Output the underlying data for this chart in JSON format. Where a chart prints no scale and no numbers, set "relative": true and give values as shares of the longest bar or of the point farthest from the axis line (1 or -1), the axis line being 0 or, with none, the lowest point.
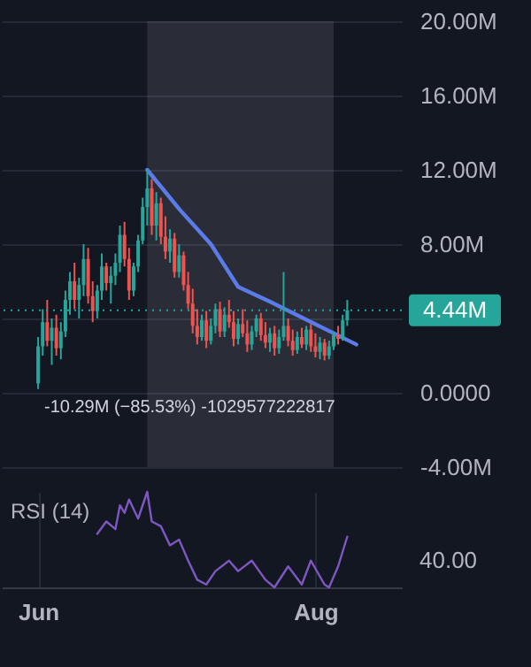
{
  "chart_data": [
    {
      "type": "candlestick",
      "x": [
        "--06-01",
        "--06-02",
        "--06-03",
        "--06-04",
        "--06-05",
        "--06-06",
        "--06-07",
        "--06-08",
        "--06-09",
        "--06-10",
        "--06-11",
        "--06-12",
        "--06-13",
        "--06-14",
        "--06-15",
        "--06-16",
        "--06-17",
        "--06-18",
        "--06-19",
        "--06-20",
        "--06-21",
        "--06-22",
        "--06-23",
        "--06-24",
        "--06-25",
        "--06-26",
        "--06-27",
        "--06-28",
        "--06-29",
        "--06-30",
        "--07-01",
        "--07-02",
        "--07-03",
        "--07-04",
        "--07-05",
        "--07-06",
        "--07-07",
        "--07-08",
        "--07-09",
        "--07-10",
        "--07-11",
        "--07-12",
        "--07-13",
        "--07-14",
        "--07-15",
        "--07-16",
        "--07-17",
        "--07-18",
        "--07-19",
        "--07-20",
        "--07-21",
        "--07-22",
        "--07-23",
        "--07-24",
        "--07-25",
        "--07-26",
        "--07-27",
        "--07-28",
        "--07-29",
        "--07-30",
        "--07-31",
        "--08-01",
        "--08-02",
        "--08-03",
        "--08-04",
        "--08-05",
        "--08-06",
        "--08-07",
        "--08-08"
      ],
      "ohlc": [
        [
          0.5,
          3,
          0.2,
          2.5
        ],
        [
          2.5,
          4.5,
          2,
          3.8
        ],
        [
          3.8,
          5,
          2.5,
          2.8
        ],
        [
          2.8,
          4,
          1.5,
          3.5
        ],
        [
          3.5,
          4.2,
          2,
          2.4
        ],
        [
          2.4,
          3.8,
          1.8,
          3.3
        ],
        [
          3.3,
          5.5,
          3,
          5
        ],
        [
          5,
          6.5,
          4.2,
          6
        ],
        [
          6,
          7,
          4.5,
          5
        ],
        [
          5,
          6.2,
          4,
          5.8
        ],
        [
          5.8,
          8,
          5.2,
          7.2
        ],
        [
          7.2,
          7.8,
          4.8,
          5.2
        ],
        [
          5.2,
          6,
          3.8,
          4.4
        ],
        [
          4.4,
          5.8,
          4,
          5.5
        ],
        [
          5.5,
          7.5,
          5,
          6.8
        ],
        [
          6.8,
          7,
          5.5,
          5.9
        ],
        [
          5.9,
          6.8,
          4.8,
          6.3
        ],
        [
          6.3,
          7.5,
          5.8,
          7
        ],
        [
          7,
          9,
          6.5,
          8.5
        ],
        [
          8.5,
          9.2,
          6.8,
          7.2
        ],
        [
          7.2,
          7.8,
          5,
          5.5
        ],
        [
          5.5,
          7,
          5.2,
          6.8
        ],
        [
          6.8,
          8.5,
          6.5,
          8.2
        ],
        [
          8.2,
          10.5,
          8,
          10
        ],
        [
          10,
          12.03,
          9,
          11
        ],
        [
          11,
          11.5,
          8.5,
          9
        ],
        [
          9,
          10.8,
          8.2,
          10.2
        ],
        [
          10.2,
          10.5,
          8,
          8.4
        ],
        [
          8.4,
          9.5,
          7.2,
          7.6
        ],
        [
          7.6,
          8.8,
          7,
          8.3
        ],
        [
          8.3,
          8.6,
          6.2,
          6.5
        ],
        [
          6.5,
          8,
          6.2,
          7.4
        ],
        [
          7.4,
          7.6,
          5.5,
          5.8
        ],
        [
          5.8,
          6.5,
          4.5,
          4.8
        ],
        [
          4.8,
          5.6,
          3.2,
          3.6
        ],
        [
          3.6,
          4.5,
          2.6,
          3
        ],
        [
          3,
          4.2,
          2.8,
          3.9
        ],
        [
          3.9,
          4.4,
          2.4,
          2.8
        ],
        [
          2.8,
          4,
          2.6,
          3.6
        ],
        [
          3.6,
          4.8,
          3.2,
          4.5
        ],
        [
          4.5,
          4.9,
          3,
          3.3
        ],
        [
          3.3,
          4.6,
          3,
          4.2
        ],
        [
          4.2,
          5,
          3.5,
          3.8
        ],
        [
          3.8,
          4.4,
          2.5,
          2.9
        ],
        [
          2.9,
          4,
          2.6,
          3.7
        ],
        [
          3.7,
          4.5,
          3,
          3.2
        ],
        [
          3.2,
          3.9,
          2.2,
          2.6
        ],
        [
          2.6,
          3.6,
          2.3,
          3.3
        ],
        [
          3.3,
          4.2,
          3,
          4
        ],
        [
          4,
          4.3,
          2.8,
          3.1
        ],
        [
          3.1,
          3.8,
          2.4,
          2.7
        ],
        [
          2.7,
          3.5,
          2.2,
          3.2
        ],
        [
          3.2,
          3.6,
          2,
          2.4
        ],
        [
          2.4,
          3.4,
          2.1,
          3
        ],
        [
          3,
          6.5,
          2.8,
          3.6
        ],
        [
          3.6,
          4,
          2.5,
          2.8
        ],
        [
          2.8,
          3.4,
          2,
          2.3
        ],
        [
          2.3,
          3.3,
          2.1,
          3
        ],
        [
          3,
          3.5,
          2.4,
          2.6
        ],
        [
          2.6,
          3.6,
          2.3,
          3.4
        ],
        [
          3.4,
          3.7,
          2.2,
          2.5
        ],
        [
          2.5,
          3.2,
          1.9,
          2.2
        ],
        [
          2.2,
          3,
          1.8,
          2.7
        ],
        [
          2.7,
          2.9,
          1.74,
          2
        ],
        [
          2,
          2.8,
          1.8,
          2.5
        ],
        [
          2.5,
          3.3,
          2.3,
          3.1
        ],
        [
          3.1,
          3.6,
          2.6,
          2.9
        ],
        [
          2.9,
          4.2,
          2.8,
          3.9
        ],
        [
          3.9,
          5,
          3.6,
          4.44
        ]
      ],
      "colors": [
        "#26a69a",
        "#26a69a",
        "#ef5350",
        "#26a69a",
        "#ef5350",
        "#26a69a",
        "#26a69a",
        "#26a69a",
        "#ef5350",
        "#26a69a",
        "#26a69a",
        "#ef5350",
        "#ef5350",
        "#26a69a",
        "#26a69a",
        "#ef5350",
        "#26a69a",
        "#26a69a",
        "#26a69a",
        "#ef5350",
        "#ef5350",
        "#26a69a",
        "#26a69a",
        "#26a69a",
        "#26a69a",
        "#ef5350",
        "#26a69a",
        "#ef5350",
        "#ef5350",
        "#26a69a",
        "#ef5350",
        "#26a69a",
        "#ef5350",
        "#ef5350",
        "#ef5350",
        "#ef5350",
        "#26a69a",
        "#ef5350",
        "#26a69a",
        "#26a69a",
        "#ef5350",
        "#26a69a",
        "#ef5350",
        "#ef5350",
        "#26a69a",
        "#ef5350",
        "#ef5350",
        "#26a69a",
        "#26a69a",
        "#ef5350",
        "#ef5350",
        "#26a69a",
        "#ef5350",
        "#26a69a",
        "#26a69a",
        "#ef5350",
        "#ef5350",
        "#26a69a",
        "#ef5350",
        "#26a69a",
        "#ef5350",
        "#ef5350",
        "#26a69a",
        "#ef5350",
        "#26a69a",
        "#26a69a",
        "#ef5350",
        "#26a69a",
        "#26a69a"
      ],
      "series": [
        {
          "type": "line",
          "color": "#5b7be8",
          "x": [
            "--06-25",
            "--07-02",
            "--07-09",
            "--07-15",
            "--07-22",
            "--07-27",
            "--08-10"
          ],
          "values": [
            12.0,
            9.9,
            8.0,
            5.7,
            4.9,
            4.3,
            2.6
          ]
        }
      ],
      "xlim": [
        "--05-24",
        "--08-20"
      ],
      "ylim": [
        -4,
        20
      ],
      "yticks": [
        {
          "value": -4,
          "label": "-4.00M"
        },
        {
          "value": 0,
          "label": "0.0000"
        },
        {
          "value": 4,
          "label": null
        },
        {
          "value": 8,
          "label": "8.00M"
        },
        {
          "value": 12,
          "label": "12.00M"
        },
        {
          "value": 16,
          "label": "16.00M"
        },
        {
          "value": 20,
          "label": "20.00M"
        }
      ],
      "tick_labels": "y",
      "grid": "y",
      "ref_lines": [
        {
          "axis": "y",
          "value": 4.44,
          "label": "4.44M",
          "color": "#26a69a",
          "line_style": "dotted"
        }
      ],
      "bands": [
        {
          "axis": "x",
          "from": "--06-25",
          "to": "--08-05",
          "color": "#9598a1"
        }
      ],
      "annotations": [
        "-10.29M (−85.53%) -1029577222817"
      ]
    },
    {
      "type": "line",
      "relative": true,
      "series": [
        {
          "name": "RSI (14)",
          "color": "#7e57c2",
          "x": [
            "--06-14",
            "--06-16",
            "--06-18",
            "--06-19",
            "--06-20",
            "--06-21",
            "--06-23",
            "--06-25",
            "--06-26",
            "--06-28",
            "--06-30",
            "--07-02",
            "--07-04",
            "--07-06",
            "--07-08",
            "--07-10",
            "--07-13",
            "--07-15",
            "--07-18",
            "--07-21",
            "--07-23",
            "--07-26",
            "--07-29",
            "--07-31",
            "--08-03",
            "--08-04",
            "--08-06",
            "--08-08"
          ],
          "values": [
            0.56,
            0.69,
            0.61,
            0.86,
            0.78,
            0.92,
            0.72,
            1,
            0.69,
            0.64,
            0.44,
            0.5,
            0.28,
            0.08,
            0.03,
            0.17,
            0.28,
            0.17,
            0.28,
            0.08,
            0,
            0.22,
            0.03,
            0.28,
            0.03,
            0,
            0.22,
            0.53
          ]
        }
      ],
      "xlim": [
        "--05-24",
        "--08-20"
      ],
      "xticks": [
        {
          "value": "--06-01",
          "label": "Jun"
        },
        {
          "value": "--08-01",
          "label": "Aug"
        }
      ],
      "tick_labels": "x",
      "grid": "x",
      "annotations": [
        "40.00"
      ]
    }
  ]
}
